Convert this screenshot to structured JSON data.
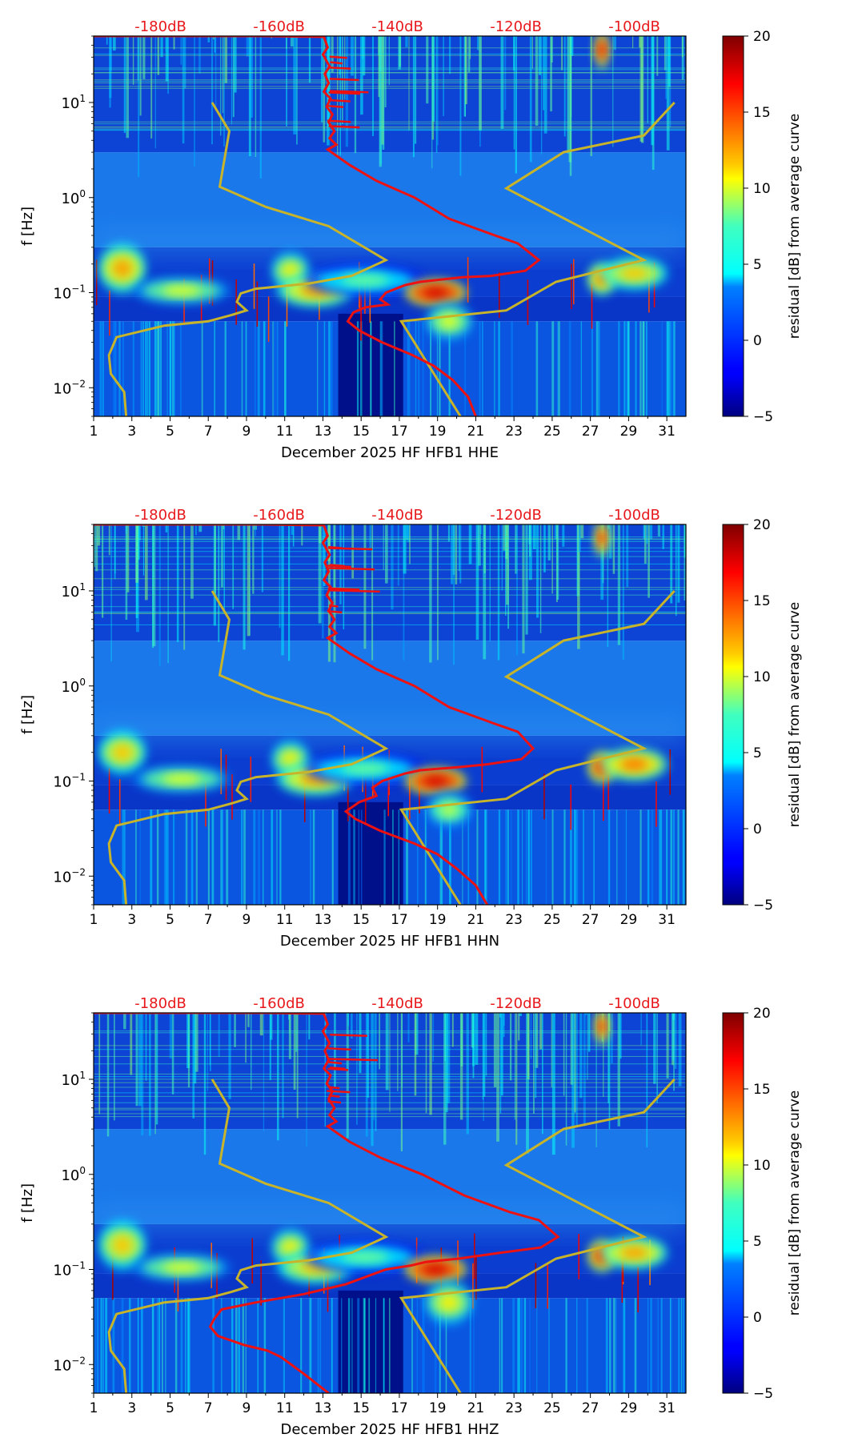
{
  "colors": {
    "db_label": "#e8191c",
    "median_curve": "#ee1111",
    "noise_model": "#c8b42a",
    "axis": "#000000"
  },
  "chart_data": [
    {
      "type": "heatmap",
      "component": "HHE",
      "xlabel": "December 2025 HF HFB1  HHE",
      "ylabel": "f [Hz]",
      "xlim": [
        1,
        32
      ],
      "ylim": [
        0.005,
        50
      ],
      "yscale": "log",
      "x_ticks": [
        "1",
        "3",
        "5",
        "7",
        "9",
        "11",
        "13",
        "15",
        "17",
        "19",
        "21",
        "23",
        "25",
        "27",
        "29",
        "31"
      ],
      "y_ticks": [
        {
          "value": 0.01,
          "base": "10",
          "exp": "−2"
        },
        {
          "value": 0.1,
          "base": "10",
          "exp": "−1"
        },
        {
          "value": 1,
          "base": "10",
          "exp": "0"
        },
        {
          "value": 10,
          "base": "10",
          "exp": "1"
        }
      ],
      "db_scale_labels": [
        {
          "x": 4.5,
          "text": "-180dB"
        },
        {
          "x": 10.7,
          "text": "-160dB"
        },
        {
          "x": 16.9,
          "text": "-140dB"
        },
        {
          "x": 23.1,
          "text": "-120dB"
        },
        {
          "x": 29.3,
          "text": "-100dB"
        }
      ],
      "colorbar": {
        "label": "residual [dB] from average curve",
        "min": -5,
        "max": 20,
        "ticks": [
          "−5",
          "0",
          "5",
          "10",
          "15",
          "20"
        ]
      },
      "high_residual_spots": [
        {
          "x": 2.5,
          "f": 0.18,
          "dx": 1.0,
          "df": 0.16,
          "level": 13
        },
        {
          "x": 5.6,
          "f": 0.105,
          "dx": 2.0,
          "df": 0.08,
          "level": 10
        },
        {
          "x": 11.3,
          "f": 0.17,
          "dx": 0.8,
          "df": 0.12,
          "level": 11
        },
        {
          "x": 12.6,
          "f": 0.105,
          "dx": 1.6,
          "df": 0.1,
          "level": 13
        },
        {
          "x": 15.2,
          "f": 0.135,
          "dx": 2.5,
          "df": 0.1,
          "level": 7
        },
        {
          "x": 18.9,
          "f": 0.1,
          "dx": 1.3,
          "df": 0.08,
          "level": 18
        },
        {
          "x": 19.6,
          "f": 0.05,
          "dx": 1.0,
          "df": 0.12,
          "level": 10
        },
        {
          "x": 27.6,
          "f": 0.14,
          "dx": 0.6,
          "df": 0.1,
          "level": 14
        },
        {
          "x": 29.3,
          "f": 0.16,
          "dx": 1.4,
          "df": 0.1,
          "level": 12
        },
        {
          "x": 27.6,
          "f": 36,
          "dx": 0.3,
          "df": 0.12,
          "level": 17
        }
      ],
      "median_curve": {
        "x": [
          1,
          6,
          10,
          13.05,
          13.25,
          13.0,
          13.35,
          13.1,
          13.3,
          13.05,
          13.4,
          13.2,
          13.5,
          13.3,
          13.6,
          13.35,
          13.7,
          13.25,
          14.4,
          15.8,
          17.8,
          19.6,
          22,
          23.2,
          24.3,
          23.6,
          21.8,
          20.3,
          18.1,
          17.3,
          16.3,
          16.0,
          16.4,
          15.2,
          14.6,
          14.3,
          14.9,
          16.1,
          17.7,
          18.8,
          19.8,
          20.6,
          21.0
        ],
        "f": [
          50,
          50,
          50,
          49,
          38,
          32,
          24,
          20,
          16,
          13,
          11,
          9,
          7.5,
          6.2,
          5,
          4.2,
          3.6,
          3.2,
          2.2,
          1.5,
          1.0,
          0.6,
          0.4,
          0.33,
          0.22,
          0.17,
          0.15,
          0.145,
          0.13,
          0.12,
          0.1,
          0.085,
          0.075,
          0.07,
          0.062,
          0.05,
          0.04,
          0.03,
          0.022,
          0.017,
          0.012,
          0.008,
          0.005
        ]
      },
      "noise_model": [
        {
          "x": [
            7.2,
            8.1,
            7.6,
            10.0,
            13.3,
            16.3,
            14.5,
            12.3,
            9.5,
            8.7,
            8.5,
            9.0,
            8.2,
            7.0,
            4.7,
            2.2,
            1.8,
            1.9,
            2.6,
            2.7
          ],
          "f": [
            10,
            5,
            1.3,
            0.8,
            0.5,
            0.22,
            0.15,
            0.125,
            0.11,
            0.098,
            0.08,
            0.065,
            0.058,
            0.05,
            0.045,
            0.034,
            0.022,
            0.014,
            0.009,
            0.005
          ]
        },
        {
          "x": [
            31.4,
            29.8,
            25.6,
            22.6,
            29.8,
            25.2,
            22.6,
            17.1,
            20.2
          ],
          "f": [
            10,
            4.5,
            3.0,
            1.25,
            0.22,
            0.13,
            0.065,
            0.05,
            0.005
          ]
        }
      ]
    },
    {
      "type": "heatmap",
      "component": "HHN",
      "xlabel": "December 2025 HF HFB1  HHN",
      "ylabel": "f [Hz]",
      "xlim": [
        1,
        32
      ],
      "ylim": [
        0.005,
        50
      ],
      "yscale": "log",
      "x_ticks": [
        "1",
        "3",
        "5",
        "7",
        "9",
        "11",
        "13",
        "15",
        "17",
        "19",
        "21",
        "23",
        "25",
        "27",
        "29",
        "31"
      ],
      "y_ticks": [
        {
          "value": 0.01,
          "base": "10",
          "exp": "−2"
        },
        {
          "value": 0.1,
          "base": "10",
          "exp": "−1"
        },
        {
          "value": 1,
          "base": "10",
          "exp": "0"
        },
        {
          "value": 10,
          "base": "10",
          "exp": "1"
        }
      ],
      "db_scale_labels": [
        {
          "x": 4.5,
          "text": "-180dB"
        },
        {
          "x": 10.7,
          "text": "-160dB"
        },
        {
          "x": 16.9,
          "text": "-140dB"
        },
        {
          "x": 23.1,
          "text": "-120dB"
        },
        {
          "x": 29.3,
          "text": "-100dB"
        }
      ],
      "colorbar": {
        "label": "residual [dB] from average curve",
        "min": -5,
        "max": 20,
        "ticks": [
          "−5",
          "0",
          "5",
          "10",
          "15",
          "20"
        ]
      },
      "high_residual_spots": [
        {
          "x": 2.5,
          "f": 0.2,
          "dx": 1.0,
          "df": 0.14,
          "level": 12
        },
        {
          "x": 5.6,
          "f": 0.105,
          "dx": 2.0,
          "df": 0.08,
          "level": 10
        },
        {
          "x": 11.3,
          "f": 0.17,
          "dx": 0.8,
          "df": 0.12,
          "level": 11
        },
        {
          "x": 12.6,
          "f": 0.105,
          "dx": 1.6,
          "df": 0.1,
          "level": 13
        },
        {
          "x": 15.2,
          "f": 0.135,
          "dx": 2.5,
          "df": 0.1,
          "level": 7
        },
        {
          "x": 18.9,
          "f": 0.1,
          "dx": 1.3,
          "df": 0.08,
          "level": 18
        },
        {
          "x": 19.6,
          "f": 0.05,
          "dx": 1.0,
          "df": 0.12,
          "level": 9
        },
        {
          "x": 27.6,
          "f": 0.14,
          "dx": 0.6,
          "df": 0.1,
          "level": 16
        },
        {
          "x": 29.3,
          "f": 0.15,
          "dx": 1.4,
          "df": 0.1,
          "level": 14
        },
        {
          "x": 27.6,
          "f": 36,
          "dx": 0.3,
          "df": 0.12,
          "level": 16
        }
      ],
      "median_curve": {
        "x": [
          1,
          6,
          10,
          13.05,
          13.25,
          13.0,
          13.35,
          13.1,
          13.3,
          13.05,
          13.4,
          13.2,
          13.5,
          13.3,
          13.6,
          13.35,
          13.7,
          13.25,
          14.4,
          15.8,
          17.8,
          19.6,
          22,
          23.2,
          24.0,
          23.4,
          21.6,
          20.1,
          18.1,
          17.3,
          16.1,
          15.6,
          15.8,
          14.9,
          14.2,
          14.7,
          16.0,
          17.8,
          19.0,
          20.0,
          21.0,
          21.6
        ],
        "f": [
          50,
          50,
          50,
          49,
          38,
          32,
          24,
          20,
          16,
          13,
          11,
          9,
          7.5,
          6.2,
          5,
          4.2,
          3.6,
          3.2,
          2.2,
          1.5,
          1.0,
          0.6,
          0.4,
          0.33,
          0.22,
          0.17,
          0.15,
          0.14,
          0.13,
          0.12,
          0.1,
          0.085,
          0.07,
          0.06,
          0.048,
          0.04,
          0.03,
          0.022,
          0.017,
          0.012,
          0.008,
          0.005
        ]
      },
      "noise_model": [
        {
          "x": [
            7.2,
            8.1,
            7.6,
            10.0,
            13.3,
            16.3,
            14.5,
            12.3,
            9.5,
            8.7,
            8.5,
            9.0,
            8.2,
            7.0,
            4.7,
            2.2,
            1.8,
            1.9,
            2.6,
            2.7
          ],
          "f": [
            10,
            5,
            1.3,
            0.8,
            0.5,
            0.22,
            0.15,
            0.125,
            0.11,
            0.098,
            0.08,
            0.065,
            0.058,
            0.05,
            0.045,
            0.034,
            0.022,
            0.014,
            0.009,
            0.005
          ]
        },
        {
          "x": [
            31.4,
            29.8,
            25.6,
            22.6,
            29.8,
            25.2,
            22.6,
            17.1,
            20.2
          ],
          "f": [
            10,
            4.5,
            3.0,
            1.25,
            0.22,
            0.13,
            0.065,
            0.05,
            0.005
          ]
        }
      ]
    },
    {
      "type": "heatmap",
      "component": "HHZ",
      "xlabel": "December 2025 HF HFB1  HHZ",
      "ylabel": "f [Hz]",
      "xlim": [
        1,
        32
      ],
      "ylim": [
        0.005,
        50
      ],
      "yscale": "log",
      "x_ticks": [
        "1",
        "3",
        "5",
        "7",
        "9",
        "11",
        "13",
        "15",
        "17",
        "19",
        "21",
        "23",
        "25",
        "27",
        "29",
        "31"
      ],
      "y_ticks": [
        {
          "value": 0.01,
          "base": "10",
          "exp": "−2"
        },
        {
          "value": 0.1,
          "base": "10",
          "exp": "−1"
        },
        {
          "value": 1,
          "base": "10",
          "exp": "0"
        },
        {
          "value": 10,
          "base": "10",
          "exp": "1"
        }
      ],
      "db_scale_labels": [
        {
          "x": 4.5,
          "text": "-180dB"
        },
        {
          "x": 10.7,
          "text": "-160dB"
        },
        {
          "x": 16.9,
          "text": "-140dB"
        },
        {
          "x": 23.1,
          "text": "-120dB"
        },
        {
          "x": 29.3,
          "text": "-100dB"
        }
      ],
      "colorbar": {
        "label": "residual [dB] from average curve",
        "min": -5,
        "max": 20,
        "ticks": [
          "−5",
          "0",
          "5",
          "10",
          "15",
          "20"
        ]
      },
      "high_residual_spots": [
        {
          "x": 2.5,
          "f": 0.18,
          "dx": 1.0,
          "df": 0.16,
          "level": 12
        },
        {
          "x": 5.6,
          "f": 0.105,
          "dx": 2.0,
          "df": 0.08,
          "level": 10
        },
        {
          "x": 11.3,
          "f": 0.17,
          "dx": 0.8,
          "df": 0.12,
          "level": 11
        },
        {
          "x": 12.6,
          "f": 0.105,
          "dx": 1.6,
          "df": 0.1,
          "level": 12
        },
        {
          "x": 15.2,
          "f": 0.135,
          "dx": 2.5,
          "df": 0.1,
          "level": 7
        },
        {
          "x": 18.9,
          "f": 0.1,
          "dx": 1.3,
          "df": 0.08,
          "level": 18
        },
        {
          "x": 19.6,
          "f": 0.045,
          "dx": 1.0,
          "df": 0.14,
          "level": 11
        },
        {
          "x": 27.6,
          "f": 0.14,
          "dx": 0.6,
          "df": 0.1,
          "level": 16
        },
        {
          "x": 29.3,
          "f": 0.15,
          "dx": 1.4,
          "df": 0.1,
          "level": 13
        },
        {
          "x": 27.6,
          "f": 36,
          "dx": 0.3,
          "df": 0.12,
          "level": 16
        }
      ],
      "median_curve": {
        "x": [
          1,
          6,
          10,
          13.05,
          13.25,
          13.0,
          13.35,
          13.1,
          13.3,
          13.05,
          13.4,
          13.2,
          13.5,
          13.3,
          13.6,
          13.35,
          13.7,
          13.25,
          14.4,
          16.0,
          18.2,
          20.4,
          22.8,
          24.3,
          25.3,
          24.4,
          22.3,
          20.1,
          18.4,
          17.6,
          16.3,
          14.2,
          12.0,
          9.5,
          7.7,
          7.3,
          7.1,
          7.5,
          8.9,
          10.1,
          10.8,
          12.0,
          13.3
        ],
        "f": [
          50,
          50,
          50,
          49,
          38,
          32,
          24,
          20,
          16,
          13,
          11,
          9,
          7.5,
          6.2,
          5,
          4.2,
          3.6,
          3.2,
          2.2,
          1.5,
          1.0,
          0.6,
          0.4,
          0.33,
          0.22,
          0.17,
          0.15,
          0.13,
          0.12,
          0.11,
          0.1,
          0.07,
          0.055,
          0.045,
          0.038,
          0.03,
          0.025,
          0.02,
          0.016,
          0.014,
          0.012,
          0.008,
          0.005
        ]
      },
      "noise_model": [
        {
          "x": [
            7.2,
            8.1,
            7.6,
            10.0,
            13.3,
            16.3,
            14.5,
            12.3,
            9.5,
            8.7,
            8.5,
            9.0,
            8.2,
            7.0,
            4.7,
            2.2,
            1.8,
            1.9,
            2.6,
            2.7
          ],
          "f": [
            10,
            5,
            1.3,
            0.8,
            0.5,
            0.22,
            0.15,
            0.125,
            0.11,
            0.098,
            0.08,
            0.065,
            0.058,
            0.05,
            0.045,
            0.034,
            0.022,
            0.014,
            0.009,
            0.005
          ]
        },
        {
          "x": [
            31.4,
            29.8,
            25.6,
            22.6,
            29.8,
            25.2,
            22.6,
            17.1,
            20.2
          ],
          "f": [
            10,
            4.5,
            3.0,
            1.25,
            0.22,
            0.13,
            0.065,
            0.05,
            0.005
          ]
        }
      ]
    }
  ]
}
